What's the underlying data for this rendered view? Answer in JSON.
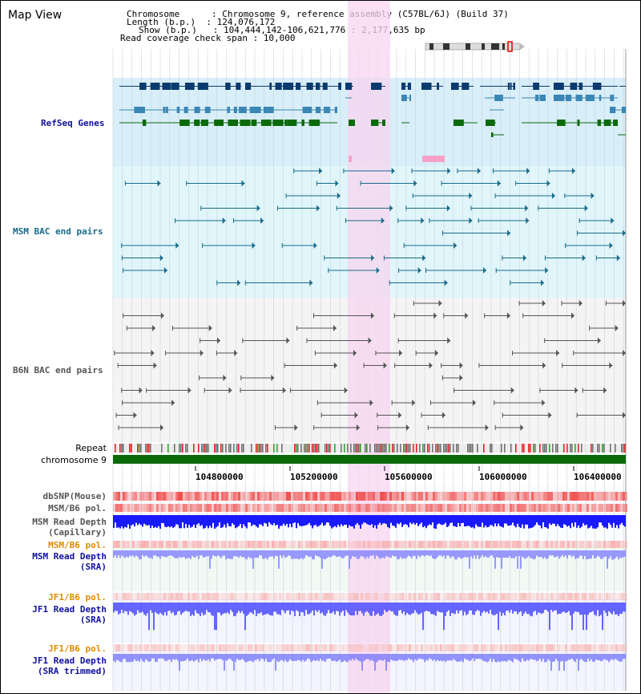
{
  "title": "Map View",
  "header": {
    "chromosome_line": "Chromosome      : Chromosome 9, reference assembly (C57BL/6J) (Build 37)",
    "length_line": "Length (b.p.)  : 124,076,172",
    "show_line": "Show (b.p.)   : 104,444,142-106,621,776 : 2,177,635 bp",
    "coverage_line": "Read coverage check span : 10,000"
  },
  "tracks": {
    "refseq": "RefSeq Genes",
    "msm_bac": "MSM BAC end pairs",
    "b6n_bac": "B6N BAC end pairs",
    "repeat": "Repeat",
    "chromosome": "chromosome 9",
    "dbsnp": "dbSNP(Mouse)",
    "msm_b6_pol": "MSM/B6 pol.",
    "msm_read_depth_cap_1": "MSM Read Depth",
    "msm_read_depth_cap_2": "(Capillary)",
    "msm_b6_pol_2": "MSM/B6 pol.",
    "msm_read_depth_sra_1": "MSM Read Depth",
    "msm_read_depth_sra_2": "(SRA)",
    "jf1_b6_pol": "JF1/B6 pol.",
    "jf1_read_depth_sra_1": "JF1 Read Depth",
    "jf1_read_depth_sra_2": "(SRA)",
    "jf1_b6_pol_2": "JF1/B6 pol.",
    "jf1_read_depth_trim_1": "JF1 Read Depth",
    "jf1_read_depth_trim_2": "(SRA trimmed)"
  },
  "axis": {
    "ticks": [
      "104800000",
      "105200000",
      "105600000",
      "106000000",
      "106400000"
    ]
  },
  "colors": {
    "refseq_dark": "#0a3a6e",
    "refseq_mid": "#3a86b4",
    "refseq_green": "#0a6a0a",
    "msm_bac": "#1a6a8a",
    "b6n_bac": "#555555",
    "highlight": "#f8d6f0",
    "chromosome": "#0a6a0a",
    "dbsnp": "#f05050",
    "depth_blue": "#1a1aff",
    "label_blue": "#1010a0",
    "label_teal": "#1a6a8a",
    "label_gray": "#555555",
    "label_orange": "#e08a00"
  }
}
